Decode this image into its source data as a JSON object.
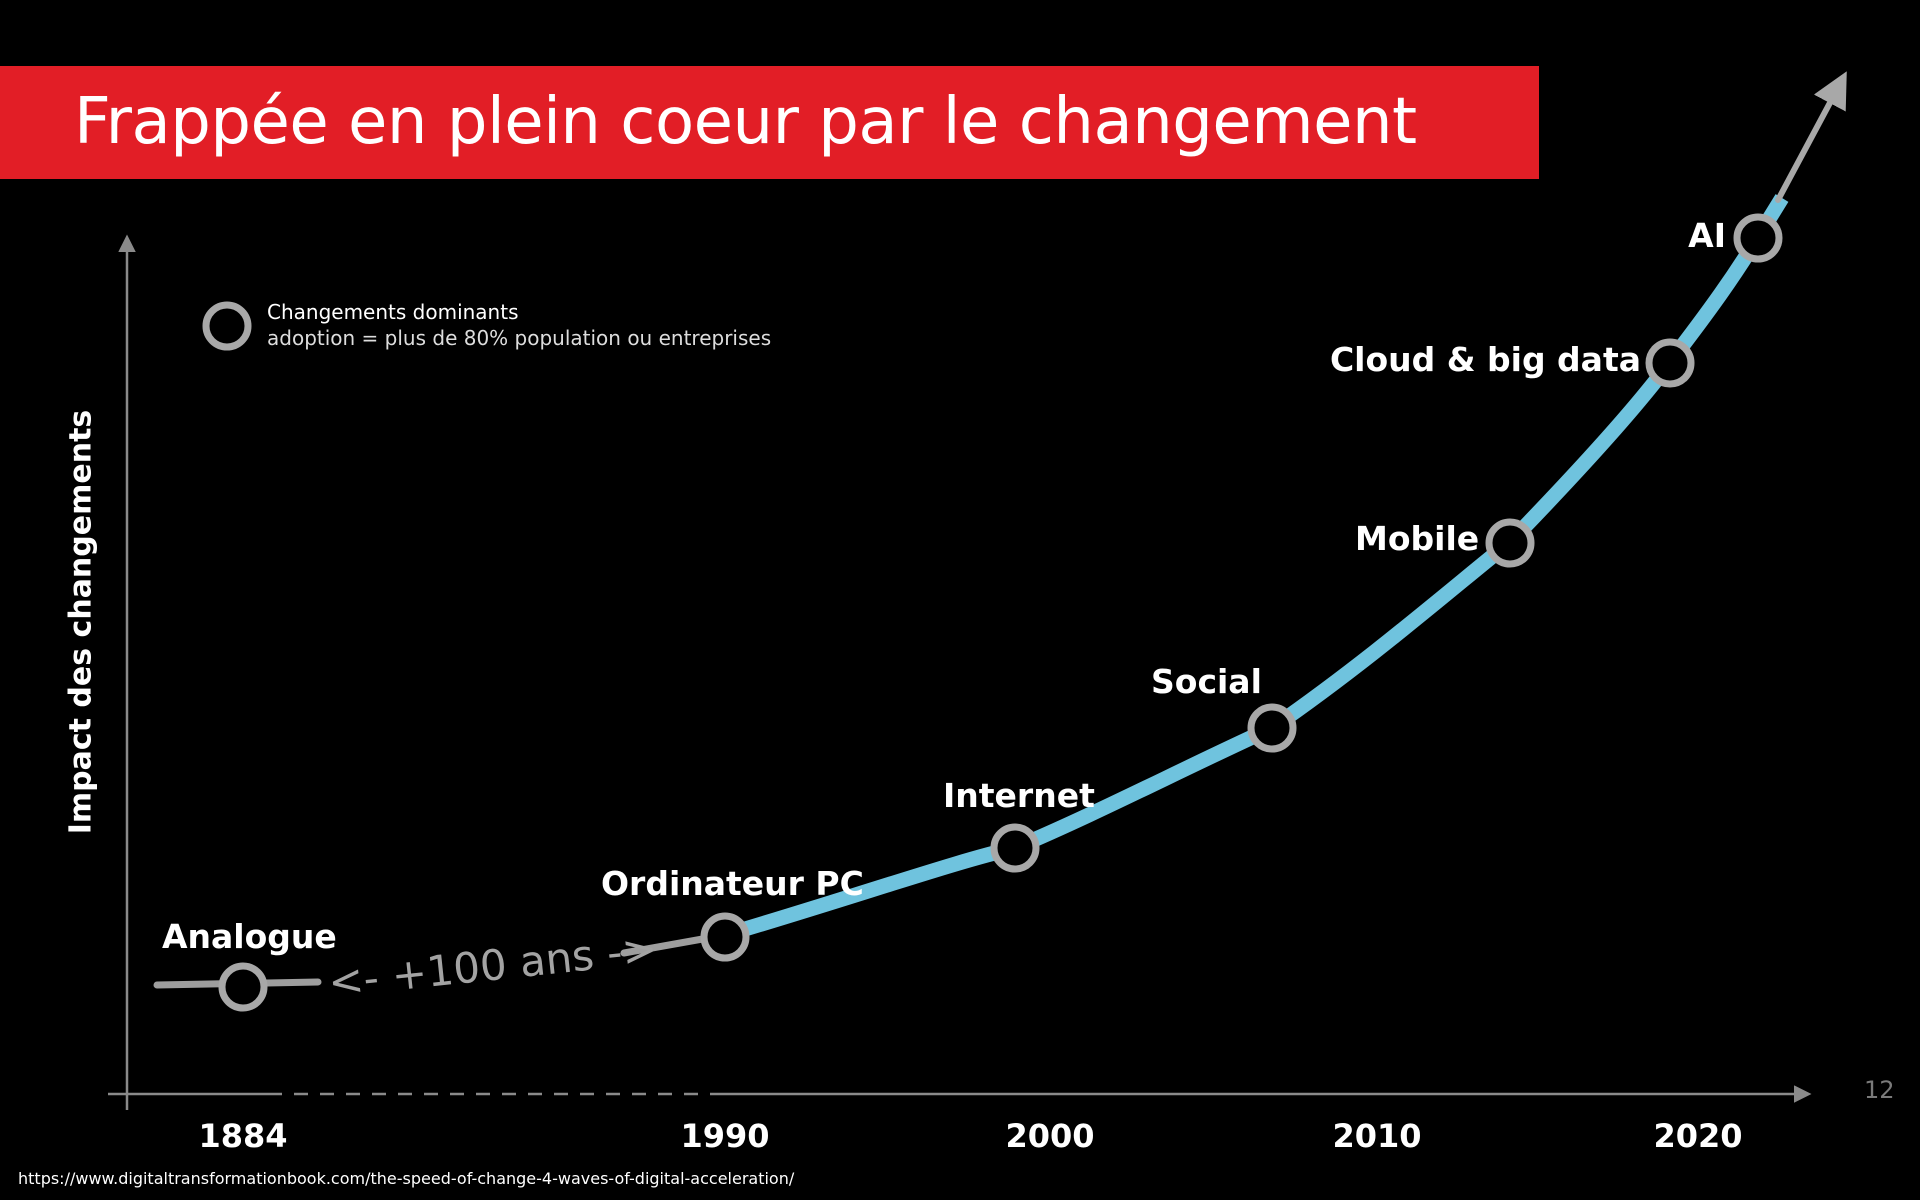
{
  "slide": {
    "title": "Frappée en plein coeur par le changement",
    "page_number": "12",
    "source": "https://www.digitaltransformationbook.com/the-speed-of-change-4-waves-of-digital-acceleration/"
  },
  "legend": {
    "title": "Changements dominants",
    "subtitle": "adoption = plus de 80% population ou entreprises"
  },
  "chart_data": {
    "type": "line",
    "ylabel": "Impact des changements",
    "x_ticks": [
      "1884",
      "1990",
      "2000",
      "2010",
      "2020"
    ],
    "gap_label": "<- +100 ans ->",
    "milestones": [
      {
        "label": "Analogue",
        "year": "1884"
      },
      {
        "label": "Ordinateur PC",
        "year": "1990"
      },
      {
        "label": "Internet",
        "year": "1999"
      },
      {
        "label": "Social",
        "year": "2007"
      },
      {
        "label": "Mobile",
        "year": "2014"
      },
      {
        "label": "Cloud & big data",
        "year": "2019"
      },
      {
        "label": "AI",
        "year": "2022"
      }
    ]
  },
  "colors": {
    "title_bar": "#e21e26",
    "curve": "#6fc3de",
    "curve_gray": "#9e9e9e",
    "marker": "#a8a8a8",
    "axis": "#8a8a8a",
    "background": "#000000"
  }
}
